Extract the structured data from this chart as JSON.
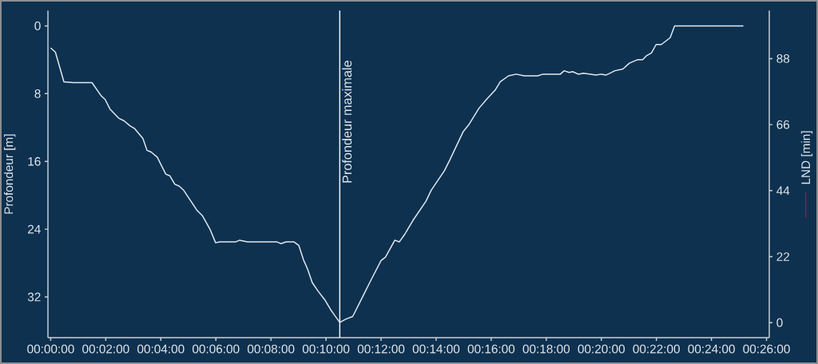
{
  "chart_data": {
    "type": "line",
    "ylabel": "Profondeur [m]",
    "y2label": "LND [min]",
    "xlim": [
      -0.1,
      26.1
    ],
    "xticks": [
      {
        "value": 0,
        "label": "00:00:00"
      },
      {
        "value": 2,
        "label": "00:02:00"
      },
      {
        "value": 4,
        "label": "00:04:00"
      },
      {
        "value": 6,
        "label": "00:06:00"
      },
      {
        "value": 8,
        "label": "00:08:00"
      },
      {
        "value": 10,
        "label": "00:10:00"
      },
      {
        "value": 12,
        "label": "00:12:00"
      },
      {
        "value": 14,
        "label": "00:14:00"
      },
      {
        "value": 16,
        "label": "00:16:00"
      },
      {
        "value": 18,
        "label": "00:18:00"
      },
      {
        "value": 20,
        "label": "00:20:00"
      },
      {
        "value": 22,
        "label": "00:22:00"
      },
      {
        "value": 24,
        "label": "00:24:00"
      },
      {
        "value": 26,
        "label": "00:26:00"
      }
    ],
    "ylim": [
      36.8,
      -1.8
    ],
    "yticks": [
      0,
      8,
      16,
      24,
      32
    ],
    "y2lim": [
      -5,
      104
    ],
    "y2ticks": [
      0,
      22,
      44,
      66,
      88
    ],
    "ref_lines": [
      {
        "axis": "x",
        "value": 10.5,
        "label": "Profondeur maximale",
        "color": "#f2f4f6"
      }
    ],
    "series": [
      {
        "color": "#e3e9ee",
        "x": [
          0,
          0.17,
          0.48,
          0.82,
          1.5,
          1.82,
          1.98,
          2.15,
          2.47,
          2.66,
          2.88,
          3.04,
          3.35,
          3.5,
          3.65,
          3.87,
          4.18,
          4.33,
          4.51,
          4.66,
          4.83,
          5.32,
          5.51,
          5.8,
          5.99,
          6.14,
          6.72,
          6.86,
          7.15,
          8.22,
          8.36,
          8.55,
          8.84,
          9.01,
          9.18,
          9.33,
          9.5,
          9.71,
          9.97,
          10.17,
          10.32,
          10.5,
          10.73,
          10.97,
          11.31,
          11.65,
          12.0,
          12.16,
          12.5,
          12.66,
          12.86,
          13.15,
          13.63,
          13.82,
          14.3,
          14.5,
          14.98,
          15.18,
          15.56,
          15.85,
          16.14,
          16.33,
          16.63,
          16.91,
          17.2,
          17.69,
          17.88,
          18.51,
          18.65,
          18.83,
          18.96,
          19.16,
          19.35,
          19.81,
          19.99,
          20.18,
          20.49,
          20.78,
          21.02,
          21.31,
          21.5,
          21.65,
          21.82,
          21.99,
          22.18,
          22.5,
          22.66,
          25.16
        ],
        "values": [
          2.6,
          3.1,
          6.6,
          6.7,
          6.7,
          8.2,
          8.7,
          9.8,
          10.9,
          11.2,
          11.8,
          12.1,
          13.3,
          14.7,
          14.9,
          15.5,
          17.5,
          17.7,
          18.7,
          18.9,
          19.4,
          21.8,
          22.4,
          24.1,
          25.6,
          25.5,
          25.5,
          25.3,
          25.5,
          25.5,
          25.7,
          25.5,
          25.5,
          25.9,
          27.6,
          28.7,
          30.3,
          31.3,
          32.4,
          33.5,
          34.2,
          35.0,
          34.6,
          34.3,
          32.1,
          29.9,
          27.7,
          27.3,
          25.3,
          25.5,
          24.6,
          23.0,
          20.7,
          19.4,
          17.1,
          15.8,
          12.5,
          11.7,
          9.7,
          8.6,
          7.6,
          6.6,
          5.9,
          5.7,
          5.9,
          5.9,
          5.7,
          5.7,
          5.3,
          5.5,
          5.4,
          5.7,
          5.6,
          5.8,
          5.7,
          5.8,
          5.3,
          5.1,
          4.4,
          4.0,
          4.0,
          3.5,
          3.2,
          2.2,
          2.2,
          1.4,
          0,
          0
        ]
      }
    ]
  }
}
